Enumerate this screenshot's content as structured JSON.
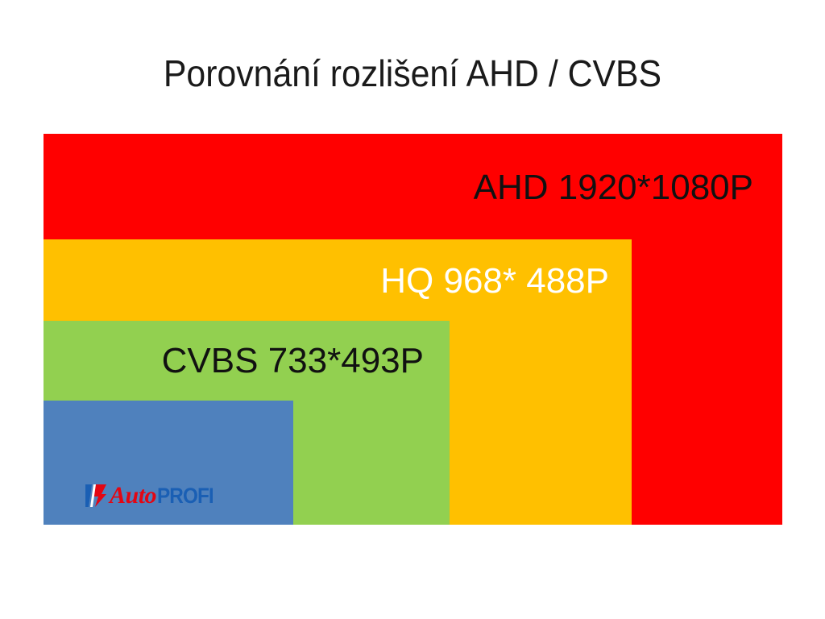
{
  "title": "Porovnání rozlišení AHD / CVBS",
  "boxes": [
    {
      "name": "ahd",
      "label": "AHD 1920*1080P",
      "color": "#ff0000"
    },
    {
      "name": "hq",
      "label": "HQ 968* 488P",
      "color": "#ffc000"
    },
    {
      "name": "cvbs",
      "label": "CVBS 733*493P",
      "color": "#92d050"
    },
    {
      "name": "blue",
      "label": "",
      "color": "#4f81bd"
    }
  ],
  "logo": {
    "word_auto": "Auto",
    "word_profi": "PROFI",
    "color_auto": "#e30613",
    "color_profi": "#1a5fb4"
  }
}
